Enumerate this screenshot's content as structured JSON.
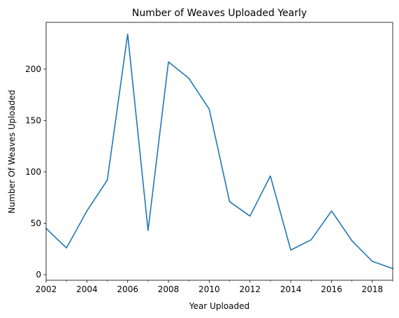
{
  "chart_data": {
    "type": "line",
    "title": "Number of Weaves Uploaded Yearly",
    "xlabel": "Year Uploaded",
    "ylabel": "Number Of Weaves Uploaded",
    "x": [
      2002,
      2003,
      2004,
      2005,
      2006,
      2007,
      2008,
      2009,
      2010,
      2011,
      2012,
      2013,
      2014,
      2015,
      2016,
      2017,
      2018,
      2019
    ],
    "series": [
      {
        "values": [
          45,
          26,
          62,
          92,
          234,
          43,
          207,
          191,
          161,
          71,
          57,
          96,
          24,
          34,
          62,
          33,
          13,
          6
        ],
        "color": "#1f77b4"
      }
    ],
    "xlim": [
      2002,
      2019
    ],
    "ylim": [
      -5.4,
      245.4
    ],
    "x_ticks_major": [
      2002,
      2004,
      2006,
      2008,
      2010,
      2012,
      2014,
      2016,
      2018
    ],
    "x_ticks_minor": [
      2003,
      2005,
      2007,
      2009,
      2011,
      2013,
      2015,
      2017,
      2019
    ],
    "x_tick_labels": [
      "2002",
      "2004",
      "2006",
      "2008",
      "2010",
      "2012",
      "2014",
      "2016",
      "2018"
    ],
    "y_ticks": [
      0,
      50,
      100,
      150,
      200
    ],
    "y_tick_labels": [
      "0",
      "50",
      "100",
      "150",
      "200"
    ],
    "grid": false,
    "legend": "none"
  }
}
